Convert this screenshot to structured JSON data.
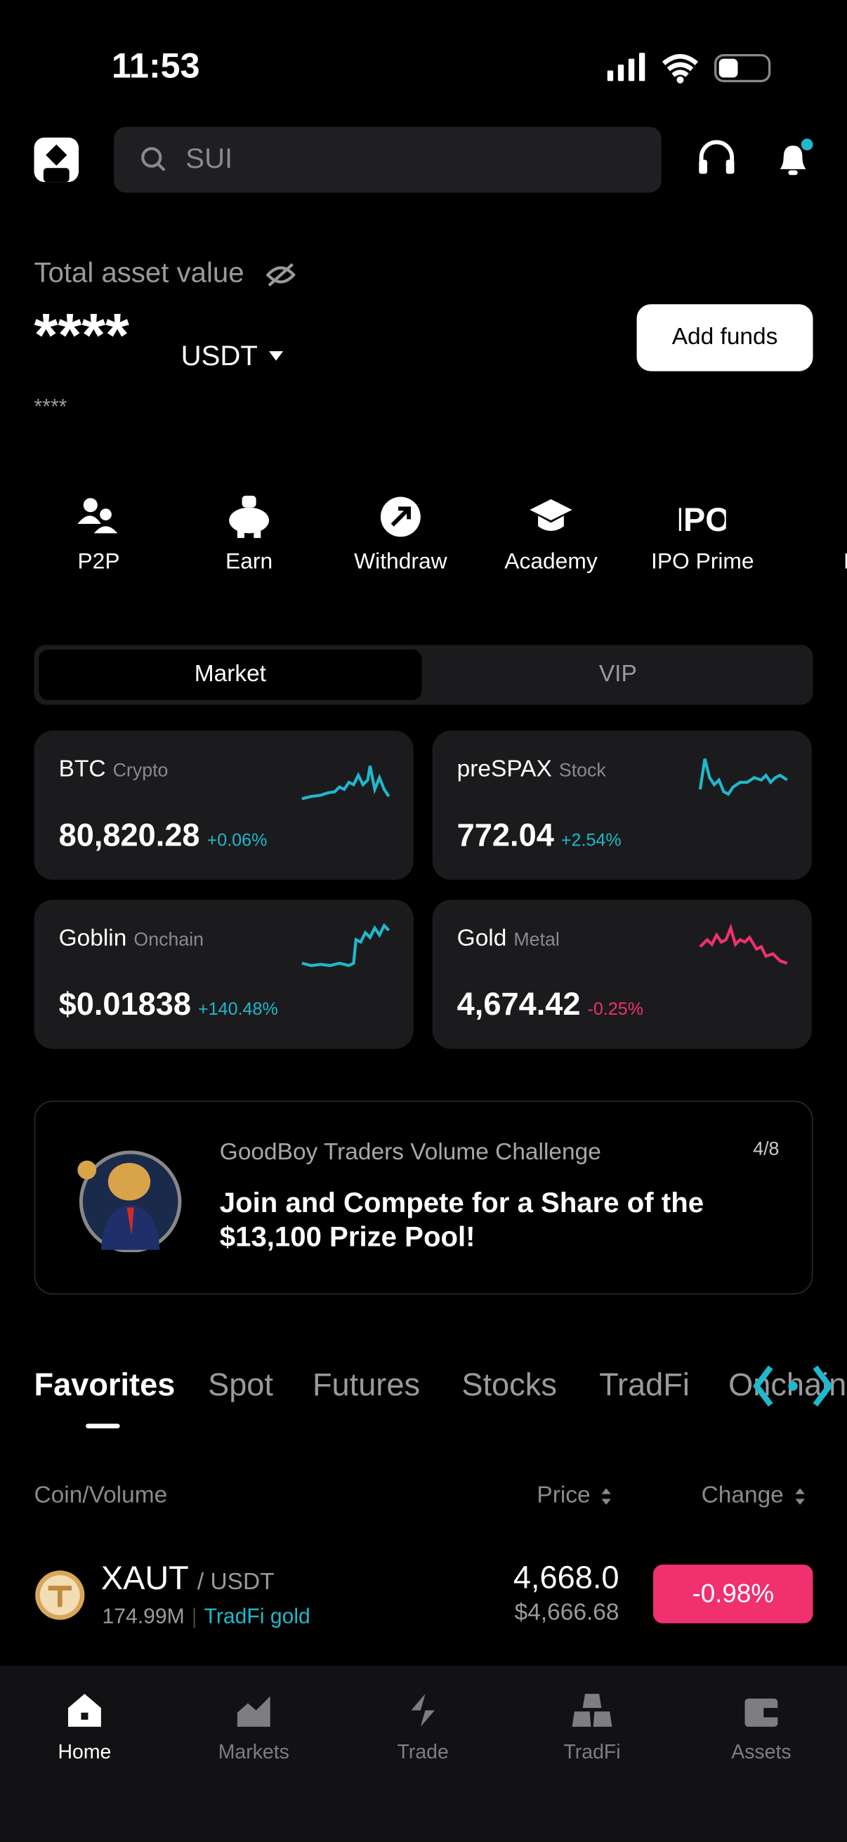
{
  "status": {
    "time": "11:53"
  },
  "search": {
    "placeholder": "SUI"
  },
  "asset": {
    "label": "Total asset value",
    "value": "****",
    "currency": "USDT",
    "sub_value": "****",
    "button": "Add funds"
  },
  "shortcuts": [
    "P2P",
    "Earn",
    "Withdraw",
    "Academy",
    "IPO Prime",
    "M"
  ],
  "segment_tabs": [
    "Market",
    "VIP"
  ],
  "cards": [
    {
      "name": "BTC",
      "tag": "Crypto",
      "price": "80,820.28",
      "change": "+0.06%"
    },
    {
      "name": "preSPAX",
      "tag": "Stock",
      "price": "772.04",
      "change": "+2.54%"
    },
    {
      "name": "Goblin",
      "tag": "Onchain",
      "price": "$0.01838",
      "change": "+140.48%"
    },
    {
      "name": "Gold",
      "tag": "Metal",
      "price": "4,674.42",
      "change": "-0.25%"
    }
  ],
  "banner": {
    "title": "GoodBoy Traders Volume Challenge",
    "text": "Join and Compete for a Share of the $13,100 Prize Pool!",
    "page": "4/8"
  },
  "market_tabs": [
    "Favorites",
    "Spot",
    "Futures",
    "Stocks",
    "TradFi",
    "Onchain"
  ],
  "table": {
    "header": [
      "Coin/Volume",
      "Price",
      "Change"
    ],
    "rows": [
      {
        "coin": "XAUT",
        "quote": "/ USDT",
        "volume": "174.99M",
        "tag": "TradFi gold",
        "price": "4,668.0",
        "price_usd": "$4,666.68",
        "change": "-0.98%"
      }
    ]
  },
  "nav": [
    "Home",
    "Markets",
    "Trade",
    "TradFi",
    "Assets"
  ]
}
